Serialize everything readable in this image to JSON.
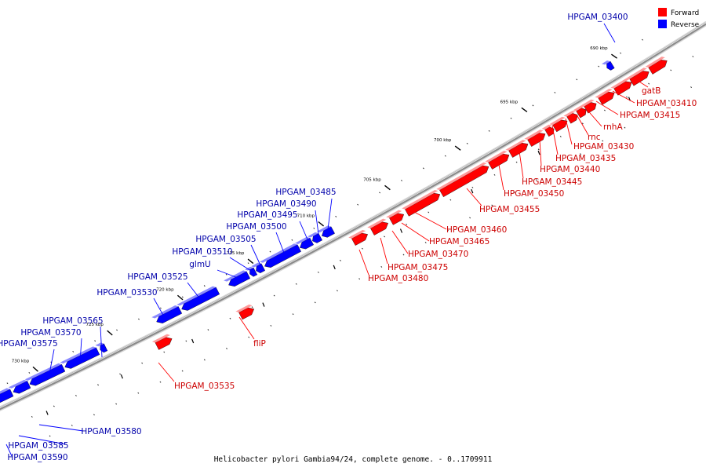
{
  "caption": "Helicobacter pylori Gambia94/24, complete genome. - 0..1709911",
  "legend": [
    {
      "label": "Forward",
      "color": "#ff0000"
    },
    {
      "label": "Reverse",
      "color": "#0000ff"
    }
  ],
  "colors": {
    "forward": "#ff0000",
    "forward_text": "#cc0000",
    "reverse": "#0000ff",
    "reverse_text": "#0000aa",
    "backbone": "#8a8a8a"
  },
  "ticks": [
    "690 kbp",
    "695 kbp",
    "700 kbp",
    "705 kbp",
    "710 kbp",
    "715 kbp",
    "720 kbp",
    "725 kbp",
    "730 kbp"
  ],
  "forward_genes": [
    "gatB",
    "HPGAM_03410",
    "HPGAM_03415",
    "rnhA",
    "rnc",
    "HPGAM_03430",
    "HPGAM_03435",
    "HPGAM_03440",
    "HPGAM_03445",
    "HPGAM_03450",
    "HPGAM_03455",
    "HPGAM_03460",
    "HPGAM_03465",
    "HPGAM_03470",
    "HPGAM_03475",
    "HPGAM_03480",
    "fliP",
    "HPGAM_03535"
  ],
  "reverse_genes": [
    "HPGAM_03400",
    "HPGAM_03485",
    "HPGAM_03490",
    "HPGAM_03495",
    "HPGAM_03500",
    "HPGAM_03505",
    "HPGAM_03510",
    "glmU",
    "HPGAM_03525",
    "HPGAM_03530",
    "HPGAM_03565",
    "HPGAM_03570",
    "HPGAM_03575",
    "HPGAM_03580",
    "HPGAM_03585",
    "HPGAM_03590"
  ]
}
